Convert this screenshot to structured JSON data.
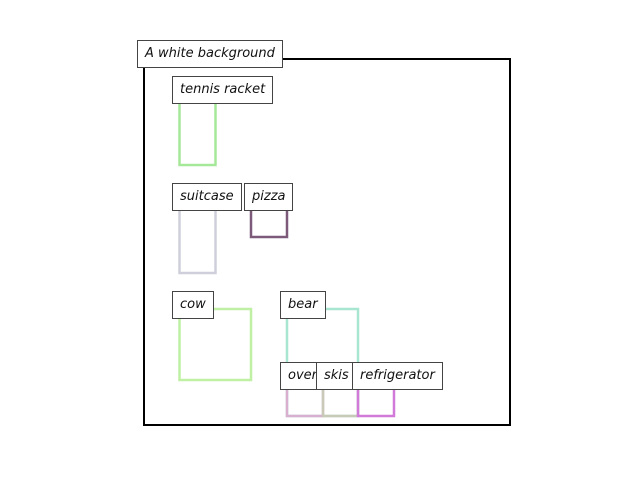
{
  "caption": "A white background",
  "boxes": [
    {
      "label": "tennis racket",
      "color": "#a6e89a"
    },
    {
      "label": "suitcase",
      "color": "#cfcfdc"
    },
    {
      "label": "pizza",
      "color": "#7d5a7a"
    },
    {
      "label": "cow",
      "color": "#bff0a3"
    },
    {
      "label": "bear",
      "color": "#a9e6d2"
    },
    {
      "label": "oven",
      "color": "#d8afcf"
    },
    {
      "label": "skis",
      "color": "#c9c9b8"
    },
    {
      "label": "refrigerator",
      "color": "#d27ad9"
    }
  ]
}
